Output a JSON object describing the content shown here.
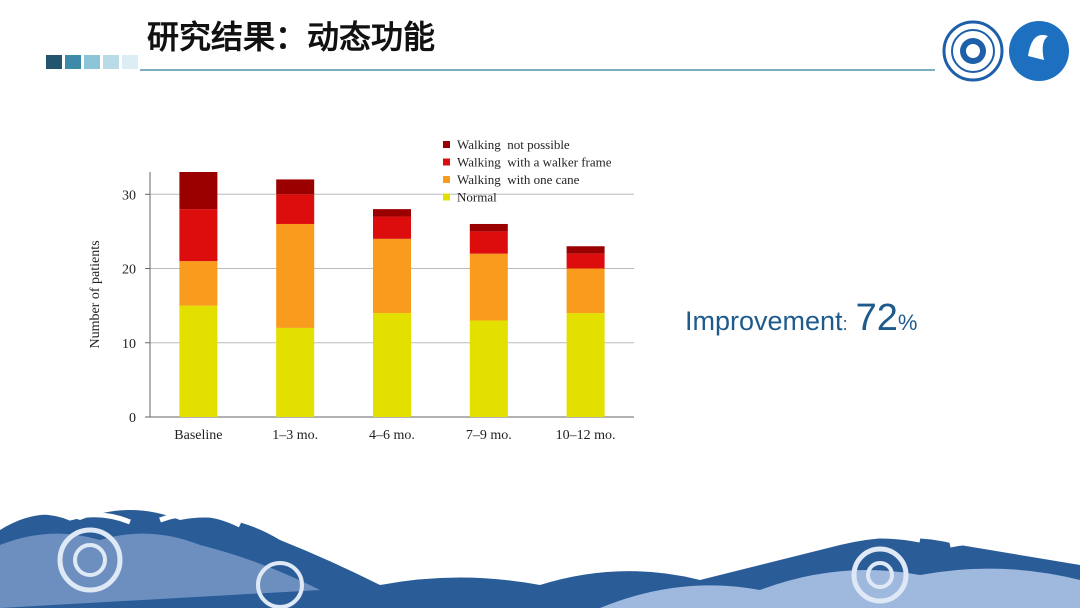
{
  "slide": {
    "title": "研究结果：动态功能",
    "note_label": "Improvement",
    "note_colon": ":",
    "note_value": "72",
    "note_unit": "%"
  },
  "chart_data": {
    "type": "stacked-bar",
    "y_label": "Number of patients",
    "categories": [
      "Baseline",
      "1–3 mo.",
      "4–6 mo.",
      "7–9 mo.",
      "10–12 mo."
    ],
    "series": [
      {
        "name": "Normal",
        "color": "#e3e000",
        "values": [
          15,
          12,
          14,
          13,
          14
        ]
      },
      {
        "name": "Walking  with one cane",
        "color": "#f99b1c",
        "values": [
          6,
          14,
          10,
          9,
          6
        ]
      },
      {
        "name": "Walking  with a walker frame",
        "color": "#dd0d0d",
        "values": [
          7,
          4,
          3,
          3,
          2
        ]
      },
      {
        "name": "Walking  not possible",
        "color": "#9b0000",
        "values": [
          5,
          2,
          1,
          1,
          1
        ]
      }
    ],
    "ylim": [
      0,
      33
    ],
    "yticks": [
      0,
      10,
      20,
      30
    ],
    "grid": true,
    "legend": "top-right"
  }
}
